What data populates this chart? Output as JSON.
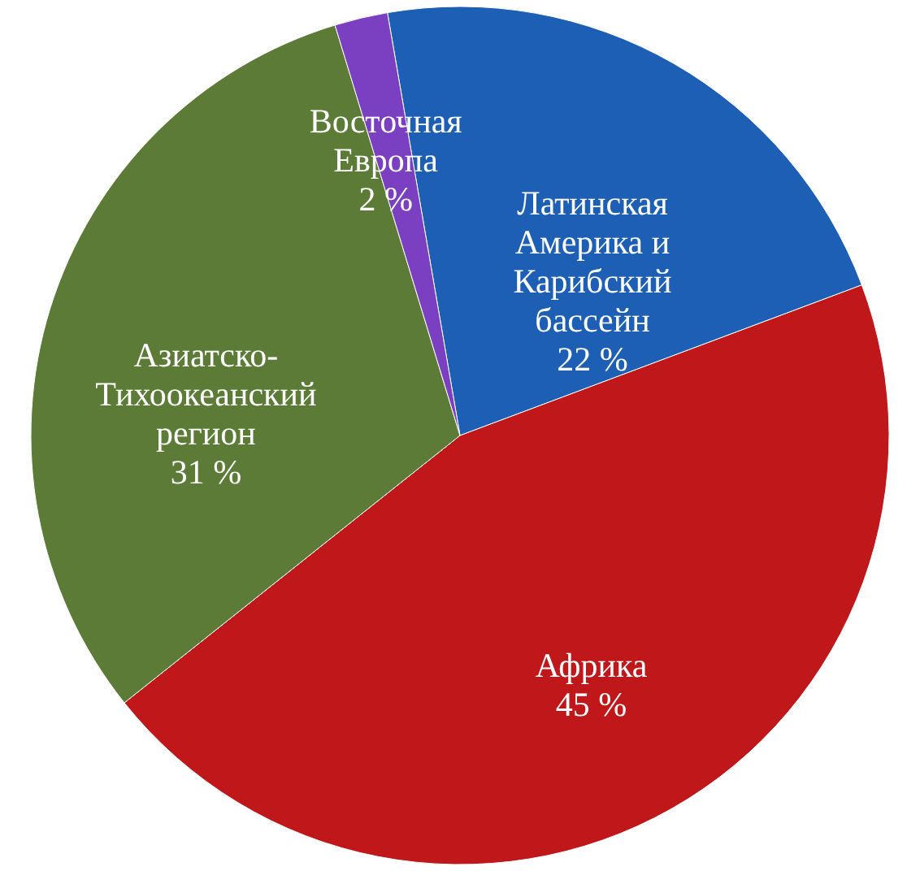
{
  "chart_data": {
    "type": "pie",
    "categories": [
      "Латинская Америка и Карибский бассейн",
      "Африка",
      "Азиатско-Тихоокеанский регион",
      "Восточная Европа"
    ],
    "values": [
      22,
      45,
      31,
      2
    ],
    "value_labels": [
      "22 %",
      "45 %",
      "31 %",
      "2 %"
    ],
    "colors": [
      "#1e5fb6",
      "#c0181a",
      "#5b7b36",
      "#7b3fc2"
    ],
    "legend": false
  }
}
